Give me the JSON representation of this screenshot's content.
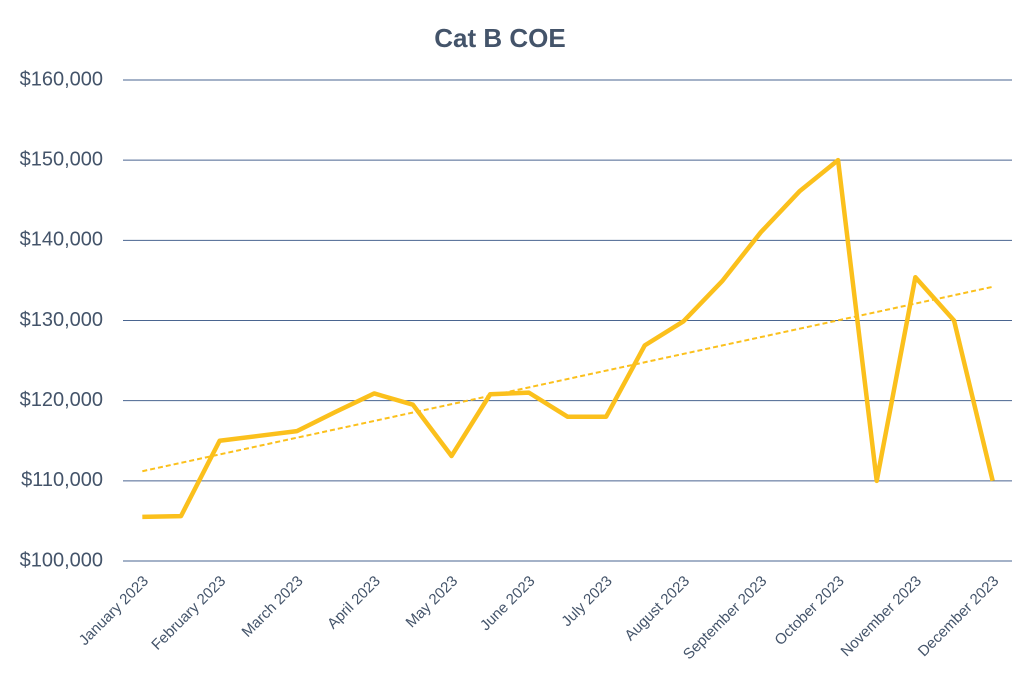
{
  "chart_data": {
    "type": "line",
    "title": "Cat B COE",
    "categories": [
      "January 2023",
      null,
      "February 2023",
      null,
      "March 2023",
      null,
      "April 2023",
      null,
      "May 2023",
      null,
      "June 2023",
      null,
      "July 2023",
      null,
      "August 2023",
      null,
      "September 2023",
      null,
      "October 2023",
      null,
      "November 2023",
      null,
      "December 2023"
    ],
    "series": [
      {
        "name": "Cat B COE",
        "color": "#fbc01c",
        "values": [
          105500,
          105600,
          115000,
          115600,
          116200,
          118600,
          120900,
          119500,
          113100,
          120800,
          121000,
          118000,
          118000,
          126900,
          129900,
          134900,
          141000,
          146100,
          150000,
          110000,
          135400,
          130000,
          110000
        ]
      }
    ],
    "trendline": {
      "color": "#fbc01c",
      "start": 111200,
      "end": 134200
    },
    "ylim": [
      100000,
      160000
    ],
    "yticks": [
      {
        "value": 100000,
        "label": "$100,000"
      },
      {
        "value": 110000,
        "label": "$110,000"
      },
      {
        "value": 120000,
        "label": "$120,000"
      },
      {
        "value": 130000,
        "label": "$130,000"
      },
      {
        "value": 140000,
        "label": "$140,000"
      },
      {
        "value": 150000,
        "label": "$150,000"
      },
      {
        "value": 160000,
        "label": "$160,000"
      }
    ],
    "grid": true
  }
}
